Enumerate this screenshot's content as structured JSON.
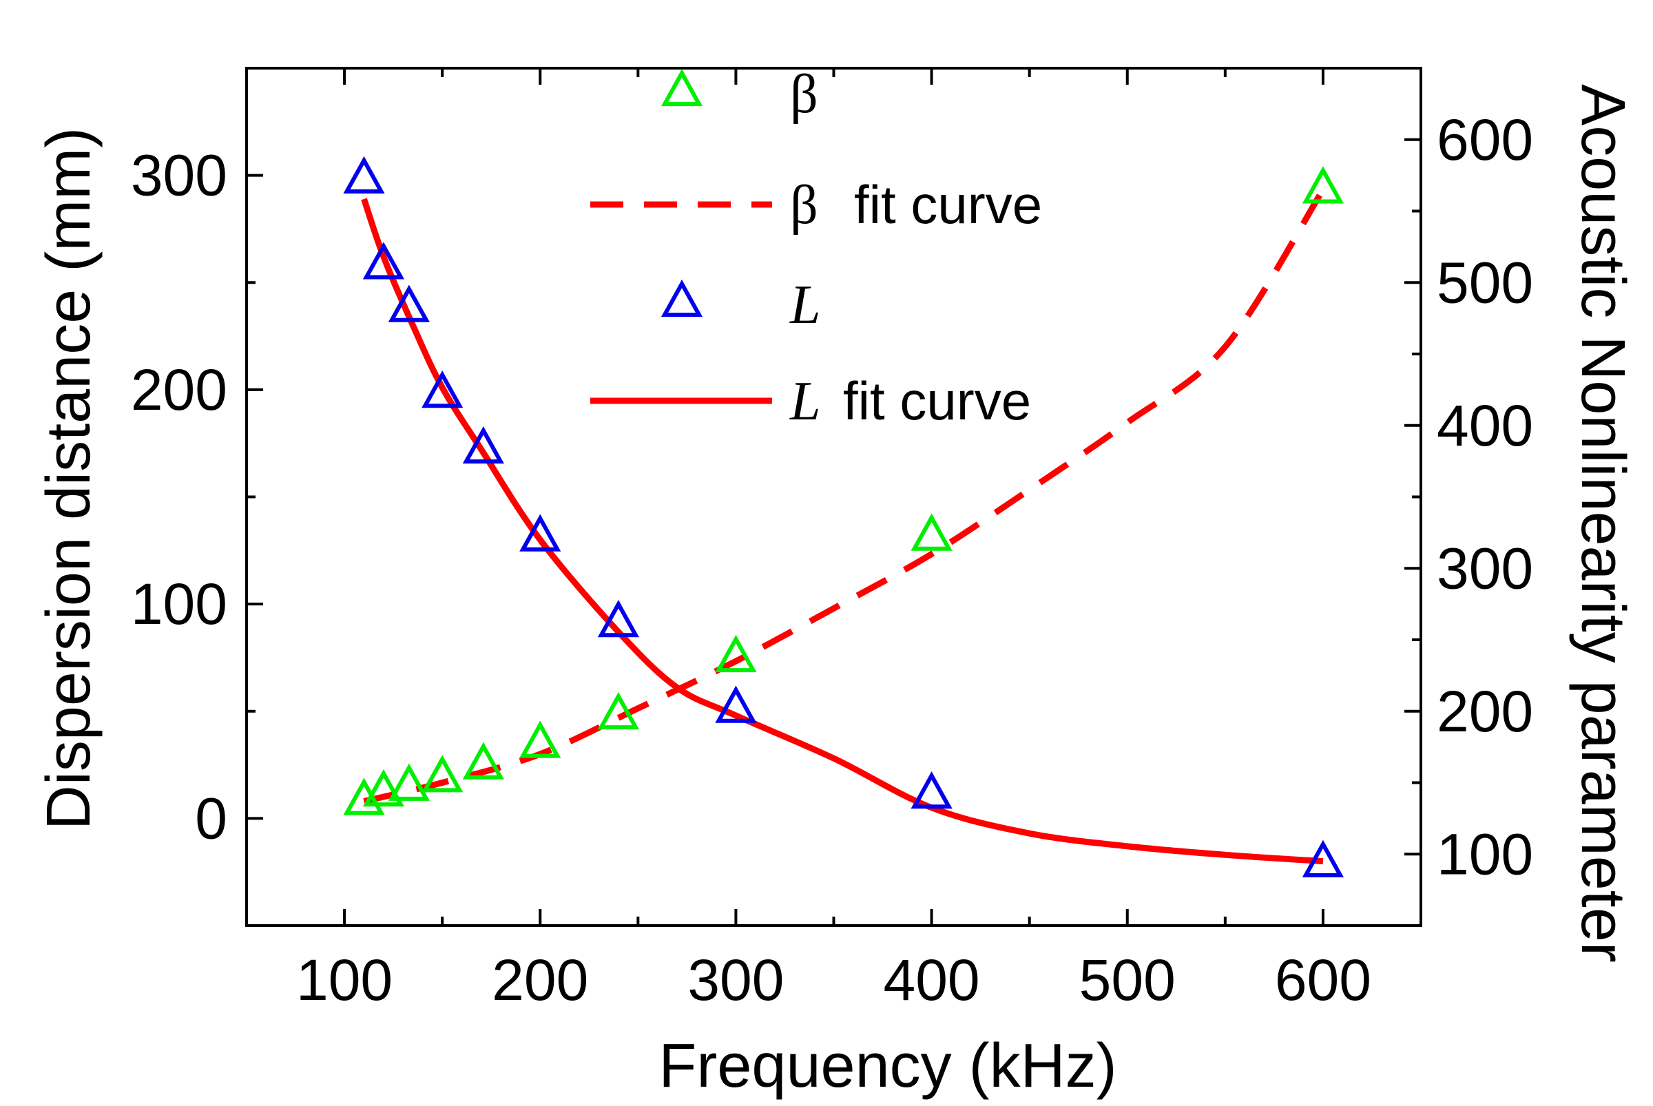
{
  "chart_data": {
    "type": "scatter",
    "xlabel": "Frequency (kHz)",
    "ylabel": "Dispersion distance (mm)",
    "y2label": "Acoustic Nonlinearity parameter",
    "xlim": [
      50,
      650
    ],
    "ylim": [
      -50,
      350
    ],
    "y2lim": [
      50,
      650
    ],
    "xticks": [
      100,
      200,
      300,
      400,
      500,
      600
    ],
    "yticks": [
      0,
      100,
      200,
      300
    ],
    "y2ticks": [
      100,
      200,
      300,
      400,
      500,
      600
    ],
    "grid": false,
    "legend_position": "top-center",
    "legend": [
      {
        "symbol": "β",
        "text": "",
        "kind": "marker",
        "color": "#00ee00"
      },
      {
        "symbol": "β",
        "text": "fit curve",
        "kind": "dashed",
        "color": "#ff0000"
      },
      {
        "symbol": "L",
        "text": "",
        "kind": "marker",
        "color": "#0000ee",
        "italic": true
      },
      {
        "symbol": "L",
        "text": "fit curve",
        "kind": "solid",
        "color": "#ff0000",
        "italic": true
      }
    ],
    "series": [
      {
        "name": "β",
        "axis": "right",
        "style": "marker",
        "color": "#00ee00",
        "x": [
          110,
          120,
          133,
          150,
          171,
          200,
          240,
          300,
          400,
          600
        ],
        "y": [
          137,
          143,
          147,
          153,
          162,
          177,
          197,
          237,
          322,
          565
        ]
      },
      {
        "name": "β fit curve",
        "axis": "right",
        "style": "dashed",
        "color": "#ff0000",
        "x": [
          110,
          150,
          200,
          250,
          300,
          350,
          400,
          450,
          500,
          550,
          600
        ],
        "y": [
          137,
          150,
          170,
          202,
          235,
          272,
          310,
          355,
          402,
          455,
          565
        ]
      },
      {
        "name": "L",
        "axis": "left",
        "style": "marker",
        "color": "#0000ee",
        "x": [
          110,
          120,
          133,
          150,
          171,
          200,
          240,
          300,
          400,
          600
        ],
        "y": [
          298,
          258,
          238,
          198,
          172,
          131,
          91,
          51,
          11,
          -21
        ]
      },
      {
        "name": "L fit curve",
        "axis": "left",
        "style": "solid",
        "color": "#ff0000",
        "x": [
          110,
          120,
          135,
          150,
          170,
          200,
          240,
          270,
          300,
          350,
          400,
          450,
          500,
          550,
          600
        ],
        "y": [
          289,
          262,
          230,
          201,
          172,
          130,
          87,
          61,
          48,
          28,
          5,
          -7,
          -13,
          -17,
          -20
        ]
      }
    ]
  }
}
